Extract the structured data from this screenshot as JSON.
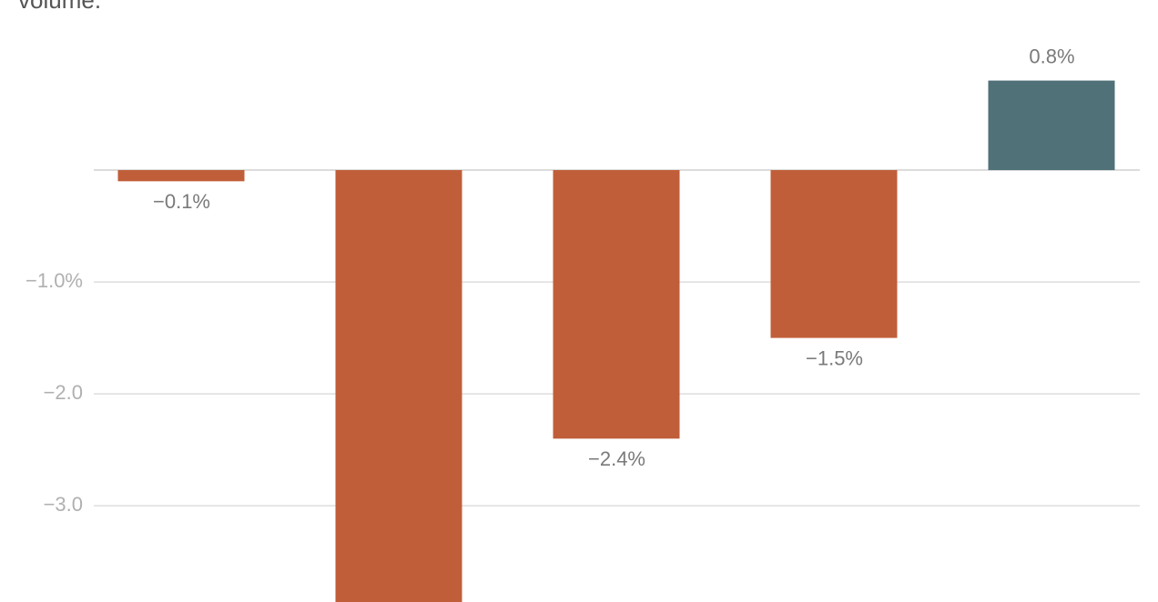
{
  "chart_data": {
    "type": "bar",
    "title": "volume.",
    "categories": [
      null,
      null,
      null,
      null,
      null
    ],
    "values": [
      -0.1,
      -4.0,
      -2.4,
      -1.5,
      0.8
    ],
    "value_labels": [
      "−0.1%",
      null,
      "−2.4%",
      "−1.5%",
      "0.8%"
    ],
    "color": "#c05e39",
    "positive_color": "#507177",
    "ylim": [
      -3.86,
      1.52
    ],
    "yticks": [
      {
        "value": -1.0,
        "label": "−1.0%"
      },
      {
        "value": -2.0,
        "label": "−2.0"
      },
      {
        "value": -3.0,
        "label": "−3.0"
      }
    ],
    "grid": true,
    "zero_line": true
  }
}
